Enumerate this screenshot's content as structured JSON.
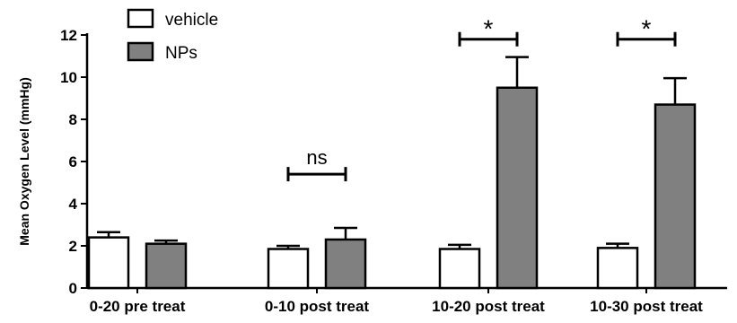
{
  "chart_data": {
    "type": "bar",
    "title": "",
    "xlabel": "",
    "ylabel": "Mean Oxygen Level (mmHg)",
    "ylim": [
      0,
      12
    ],
    "yticks": [
      0,
      2,
      4,
      6,
      8,
      10,
      12
    ],
    "grid": false,
    "legend_position": "top-left",
    "categories": [
      "0-20 pre treat",
      "0-10 post treat",
      "10-20 post treat",
      "10-30 post treat"
    ],
    "series": [
      {
        "name": "vehicle",
        "color": "#ffffff",
        "values": [
          2.4,
          1.85,
          1.85,
          1.9
        ],
        "errors": [
          0.25,
          0.15,
          0.2,
          0.2
        ]
      },
      {
        "name": "NPs",
        "color": "#808080",
        "values": [
          2.1,
          2.3,
          9.5,
          8.7
        ],
        "errors": [
          0.15,
          0.55,
          1.45,
          1.25
        ]
      }
    ],
    "annotations": [
      {
        "category": 1,
        "text": "ns",
        "y": 5.4
      },
      {
        "category": 2,
        "text": "*",
        "y": 11.8
      },
      {
        "category": 3,
        "text": "*",
        "y": 11.8
      }
    ]
  }
}
